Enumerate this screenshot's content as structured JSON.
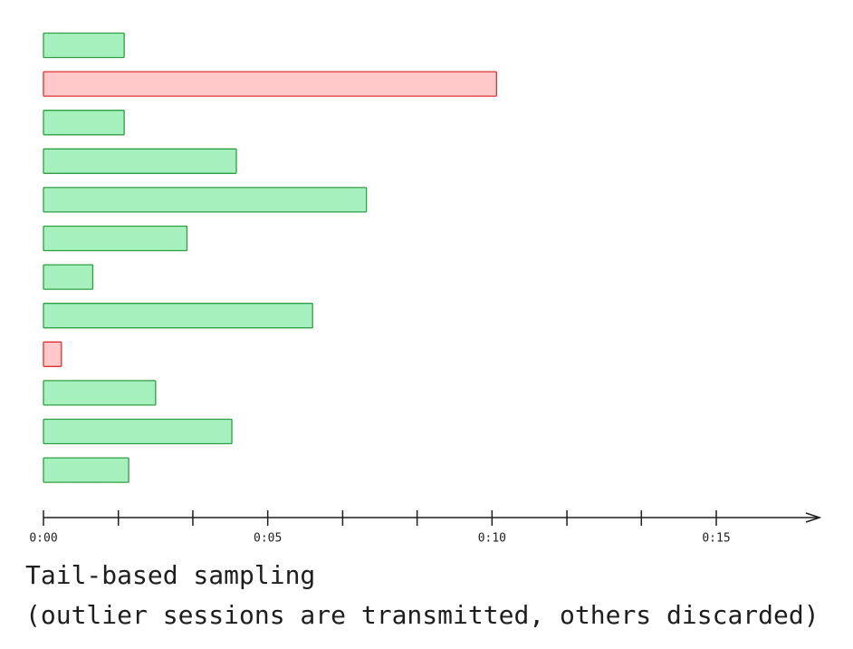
{
  "chart_data": {
    "type": "bar",
    "orientation": "horizontal",
    "title": "Tail-based sampling",
    "subtitle": "(outlier sessions are transmitted, others discarded)",
    "values": [
      1.8,
      10.1,
      1.8,
      4.3,
      7.2,
      3.2,
      1.1,
      6.0,
      0.4,
      2.5,
      4.2,
      1.9
    ],
    "colors": [
      "#a5f0bc",
      "#ffc9c9",
      "#a5f0bc",
      "#a5f0bc",
      "#a5f0bc",
      "#a5f0bc",
      "#a5f0bc",
      "#a5f0bc",
      "#ffc9c9",
      "#a5f0bc",
      "#a5f0bc",
      "#a5f0bc"
    ],
    "stroke_colors": [
      "#2f9e44",
      "#e03131",
      "#2f9e44",
      "#2f9e44",
      "#2f9e44",
      "#2f9e44",
      "#2f9e44",
      "#2f9e44",
      "#e03131",
      "#2f9e44",
      "#2f9e44",
      "#2f9e44"
    ],
    "xlim": [
      0,
      17.2
    ],
    "xticks": [
      {
        "value": 0,
        "label": "0:00"
      },
      {
        "value": 5,
        "label": "0:05"
      },
      {
        "value": 10,
        "label": "0:10"
      },
      {
        "value": 15,
        "label": "0:15"
      }
    ],
    "xminorticks": [
      1.67,
      3.33,
      6.67,
      8.33,
      11.67,
      13.33
    ]
  }
}
